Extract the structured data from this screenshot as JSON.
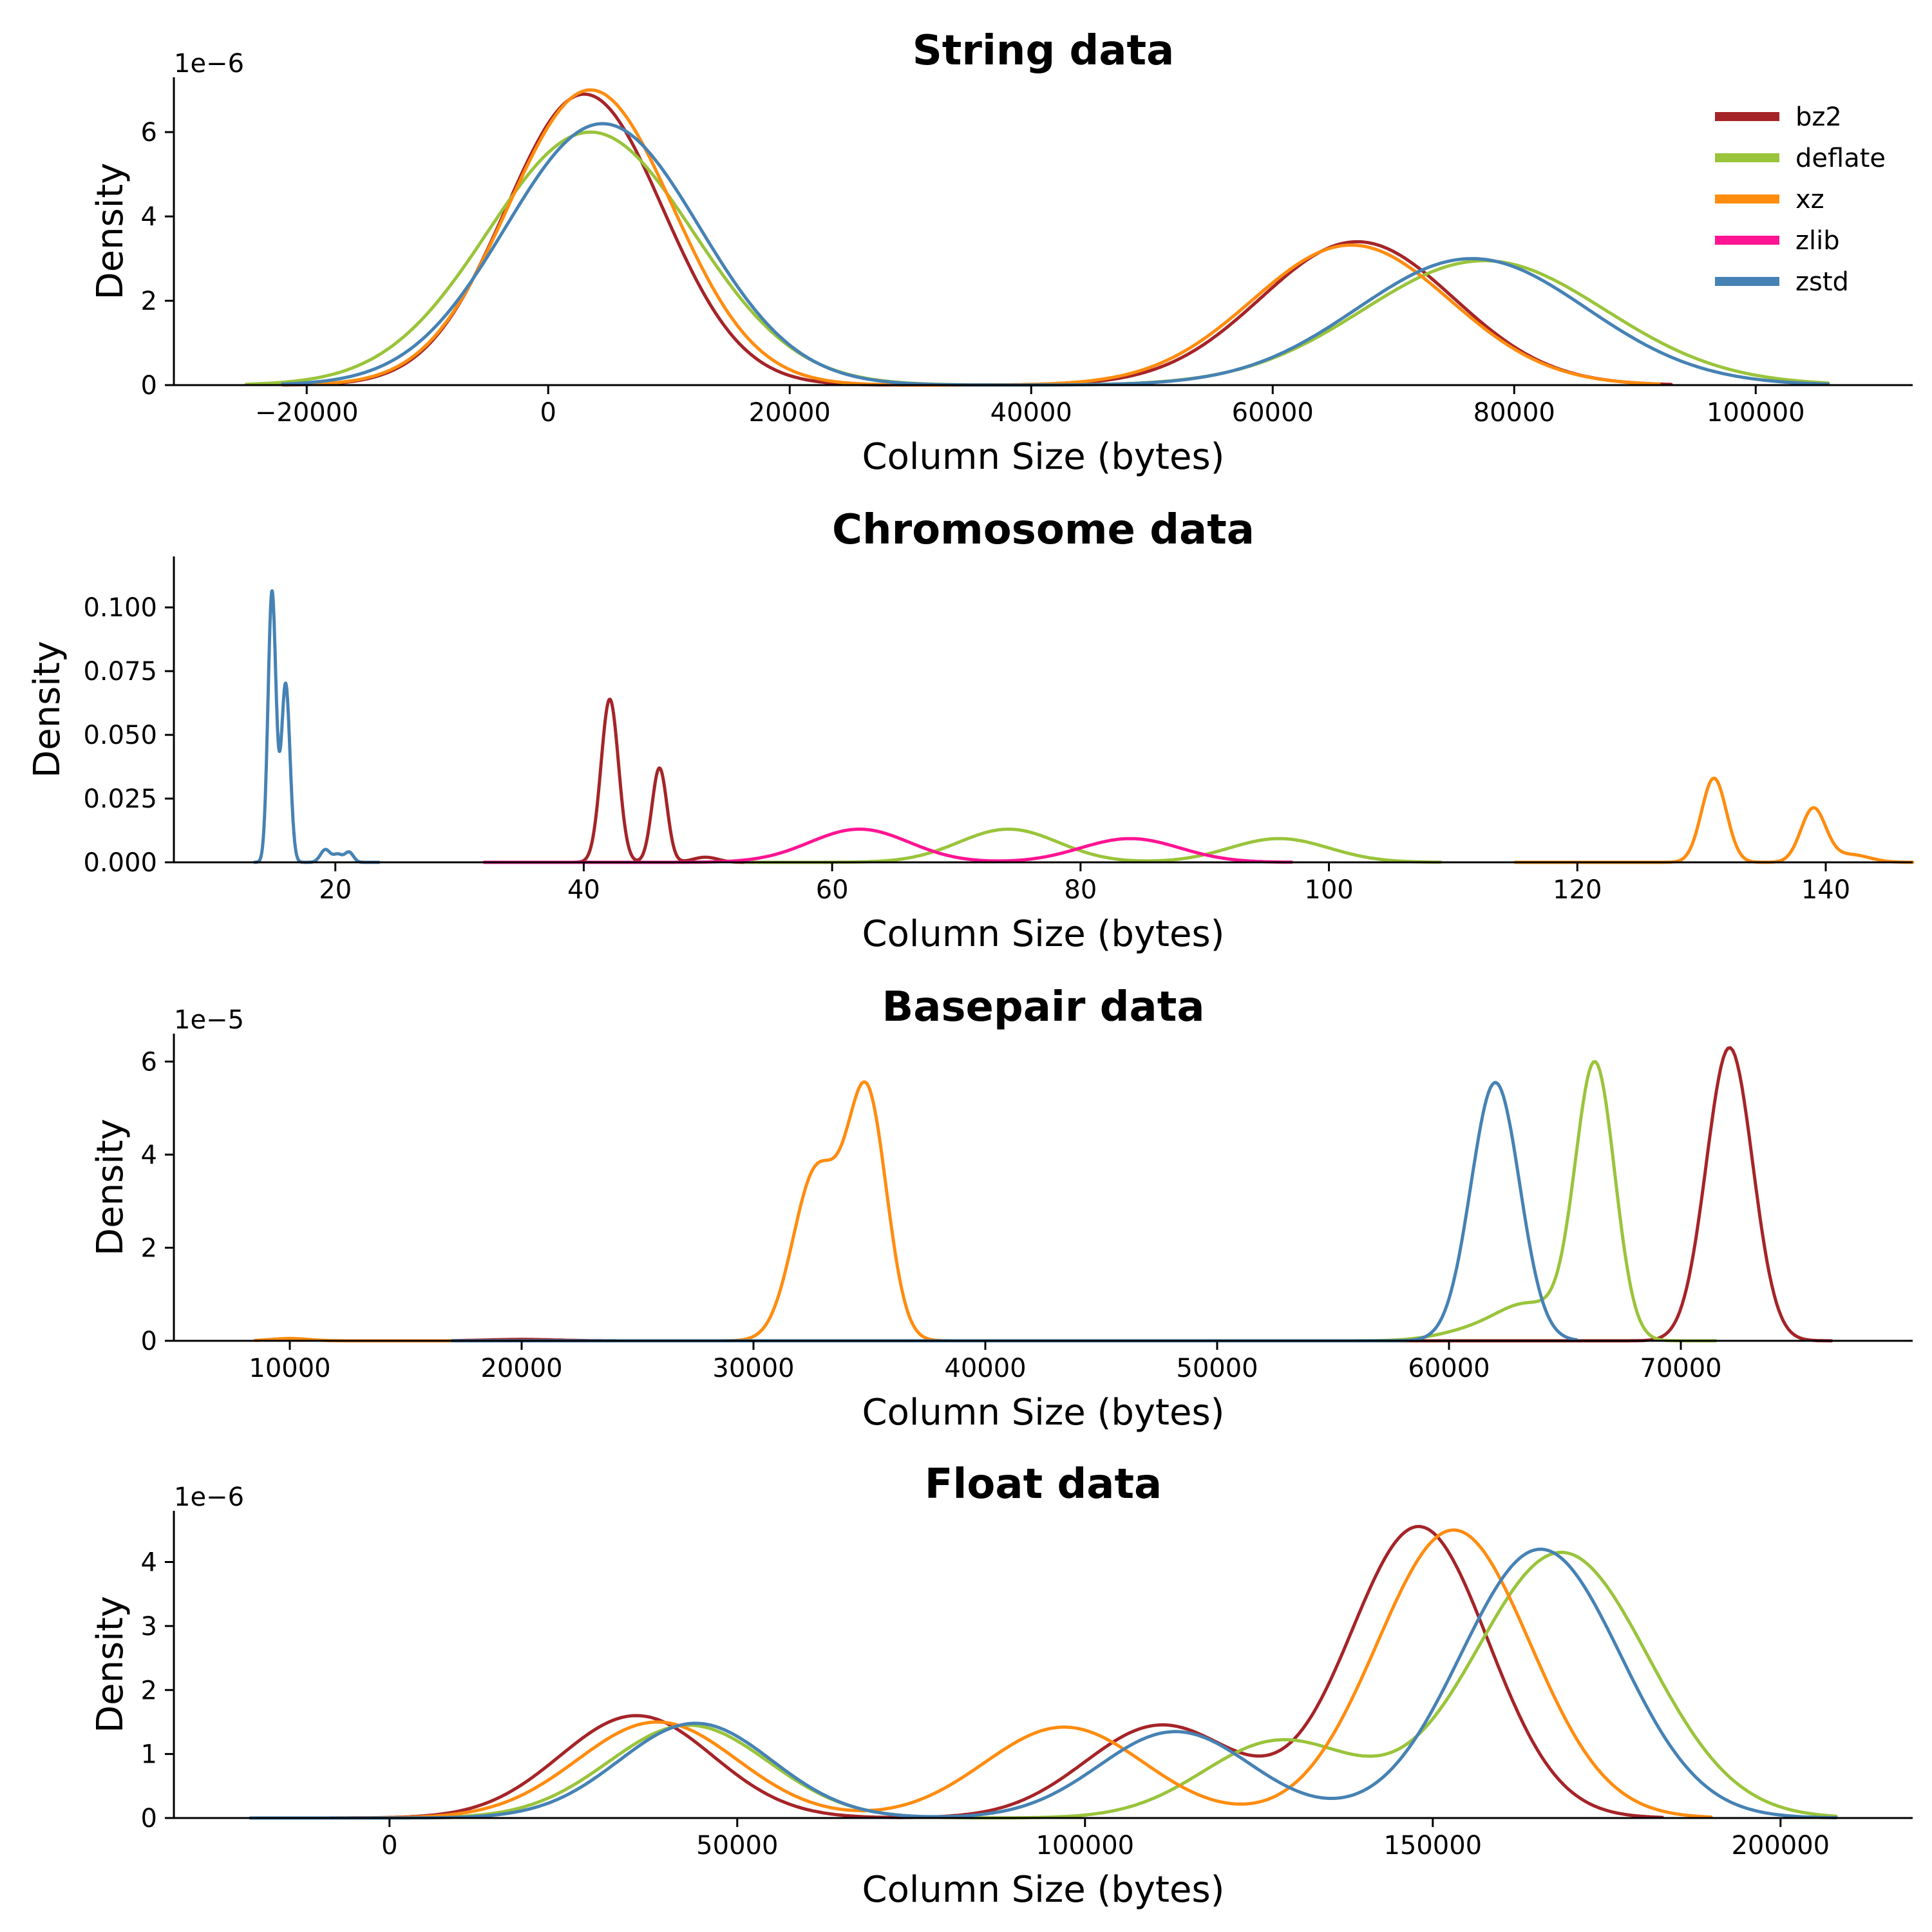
{
  "colors": {
    "bz2": "#a52428",
    "deflate": "#9ac43b",
    "xz": "#ff8c0f",
    "zlib": "#ff1493",
    "zstd": "#4682b4"
  },
  "legend": {
    "placement": "top-right",
    "entries": [
      "bz2",
      "deflate",
      "xz",
      "zlib",
      "zstd"
    ]
  },
  "chart_data": [
    {
      "type": "line",
      "kind": "kde",
      "title": "String data",
      "xlabel": "Column Size (bytes)",
      "ylabel": "Density",
      "exponent": "1e−6",
      "xlim": [
        -31000,
        113000
      ],
      "ylim": [
        0,
        7.3
      ],
      "xticks": [
        -20000,
        0,
        20000,
        40000,
        60000,
        80000,
        100000
      ],
      "xtick_labels": [
        "−20000",
        "0",
        "20000",
        "40000",
        "60000",
        "80000",
        "100000"
      ],
      "yticks": [
        0,
        2,
        4,
        6
      ],
      "ytick_labels": [
        "0",
        "2",
        "4",
        "6"
      ],
      "grid": false,
      "series": [
        {
          "name": "bz2",
          "range": [
            -22000,
            93000
          ],
          "components": [
            [
              3000,
              6500,
              6.9
            ],
            [
              67000,
              8000,
              3.4
            ]
          ]
        },
        {
          "name": "deflate",
          "range": [
            -25000,
            106000
          ],
          "components": [
            [
              3500,
              8500,
              6.0
            ],
            [
              77500,
              10000,
              2.95
            ]
          ]
        },
        {
          "name": "xz",
          "range": [
            -22000,
            92000
          ],
          "components": [
            [
              3500,
              6800,
              7.0
            ],
            [
              66500,
              8200,
              3.32
            ]
          ]
        },
        {
          "name": "zlib",
          "range": [
            -22000,
            92000
          ],
          "components": []
        },
        {
          "name": "zstd",
          "range": [
            -22000,
            106000
          ],
          "components": [
            [
              4500,
              8000,
              6.2
            ],
            [
              76500,
              9500,
              3.0
            ]
          ]
        }
      ]
    },
    {
      "type": "line",
      "kind": "kde",
      "title": "Chromosome data",
      "xlabel": "Column Size (bytes)",
      "ylabel": "Density",
      "exponent": "",
      "xlim": [
        7,
        147
      ],
      "ylim": [
        0,
        0.12
      ],
      "xticks": [
        20,
        40,
        60,
        80,
        100,
        120,
        140
      ],
      "xtick_labels": [
        "20",
        "40",
        "60",
        "80",
        "100",
        "120",
        "140"
      ],
      "yticks": [
        0,
        0.025,
        0.05,
        0.075,
        0.1
      ],
      "ytick_labels": [
        "0.000",
        "0.025",
        "0.050",
        "0.075",
        "0.100"
      ],
      "grid": false,
      "series": [
        {
          "name": "bz2",
          "range": [
            32,
            60
          ],
          "components": [
            [
              42.1,
              0.7,
              0.064
            ],
            [
              46.1,
              0.6,
              0.037
            ],
            [
              49.8,
              1.0,
              0.002
            ]
          ]
        },
        {
          "name": "deflate",
          "range": [
            53,
            109
          ],
          "components": [
            [
              74.2,
              4.0,
              0.013
            ],
            [
              96.0,
              4.0,
              0.0093
            ]
          ]
        },
        {
          "name": "xz",
          "range": [
            115,
            147
          ],
          "components": [
            [
              131.0,
              1.0,
              0.033
            ],
            [
              139.0,
              1.0,
              0.021
            ],
            [
              142.0,
              1.5,
              0.003
            ]
          ]
        },
        {
          "name": "zlib",
          "range": [
            32,
            97
          ],
          "components": [
            [
              62.2,
              4.0,
              0.013
            ],
            [
              84.0,
              4.0,
              0.0093
            ]
          ]
        },
        {
          "name": "zstd",
          "range": [
            13.5,
            23.5
          ],
          "components": [
            [
              14.9,
              0.32,
              0.106
            ],
            [
              16.0,
              0.35,
              0.07
            ],
            [
              19.2,
              0.4,
              0.005
            ],
            [
              20.2,
              0.35,
              0.003
            ],
            [
              21.1,
              0.35,
              0.004
            ]
          ]
        }
      ]
    },
    {
      "type": "line",
      "kind": "kde",
      "title": "Basepair data",
      "xlabel": "Column Size (bytes)",
      "ylabel": "Density",
      "exponent": "1e−5",
      "xlim": [
        5000,
        80000
      ],
      "ylim": [
        0,
        6.6
      ],
      "xticks": [
        10000,
        20000,
        30000,
        40000,
        50000,
        60000,
        70000
      ],
      "xtick_labels": [
        "10000",
        "20000",
        "30000",
        "40000",
        "50000",
        "60000",
        "70000"
      ],
      "yticks": [
        0,
        2,
        4,
        6
      ],
      "ytick_labels": [
        "0",
        "2",
        "4",
        "6"
      ],
      "grid": false,
      "series": [
        {
          "name": "bz2",
          "range": [
            17000,
            76500
          ],
          "components": [
            [
              72100,
              1000,
              6.3
            ],
            [
              20000,
              1500,
              0.03
            ]
          ]
        },
        {
          "name": "deflate",
          "range": [
            17000,
            71500
          ],
          "components": [
            [
              66300,
              850,
              5.9
            ],
            [
              63500,
              1400,
              0.75
            ],
            [
              61000,
              1500,
              0.2
            ]
          ]
        },
        {
          "name": "xz",
          "range": [
            8500,
            40000
          ],
          "components": [
            [
              32700,
              1000,
              3.6
            ],
            [
              34900,
              850,
              5.2
            ],
            [
              10000,
              800,
              0.05
            ]
          ]
        },
        {
          "name": "zlib",
          "range": [
            17000,
            71500
          ],
          "components": []
        },
        {
          "name": "zstd",
          "range": [
            17000,
            65500
          ],
          "components": [
            [
              62000,
              1050,
              5.55
            ]
          ]
        }
      ]
    },
    {
      "type": "line",
      "kind": "kde",
      "title": "Float data",
      "xlabel": "Column Size (bytes)",
      "ylabel": "Density",
      "exponent": "1e−6",
      "xlim": [
        -31000,
        219000
      ],
      "ylim": [
        0,
        4.8
      ],
      "xticks": [
        0,
        50000,
        100000,
        150000,
        200000
      ],
      "xtick_labels": [
        "0",
        "50000",
        "100000",
        "150000",
        "200000"
      ],
      "yticks": [
        0,
        1,
        2,
        3,
        4
      ],
      "ytick_labels": [
        "0",
        "1",
        "2",
        "3",
        "4"
      ],
      "grid": false,
      "series": [
        {
          "name": "bz2",
          "range": [
            -20000,
            183000
          ],
          "components": [
            [
              35500,
              11000,
              1.6
            ],
            [
              111000,
              11000,
              1.45
            ],
            [
              148000,
              10000,
              4.55
            ]
          ]
        },
        {
          "name": "deflate",
          "range": [
            -20000,
            208000
          ],
          "components": [
            [
              43000,
              11500,
              1.45
            ],
            [
              128000,
              11000,
              1.2
            ],
            [
              168500,
              12500,
              4.15
            ]
          ]
        },
        {
          "name": "xz",
          "range": [
            -20000,
            190000
          ],
          "components": [
            [
              38500,
              11500,
              1.5
            ],
            [
              97000,
              11500,
              1.42
            ],
            [
              153000,
              11000,
              4.5
            ]
          ]
        },
        {
          "name": "zlib",
          "range": [
            -20000,
            208000
          ],
          "components": []
        },
        {
          "name": "zstd",
          "range": [
            -20000,
            208000
          ],
          "components": [
            [
              44000,
              11000,
              1.48
            ],
            [
              113000,
              11000,
              1.35
            ],
            [
              165500,
              11500,
              4.2
            ]
          ]
        }
      ]
    }
  ]
}
